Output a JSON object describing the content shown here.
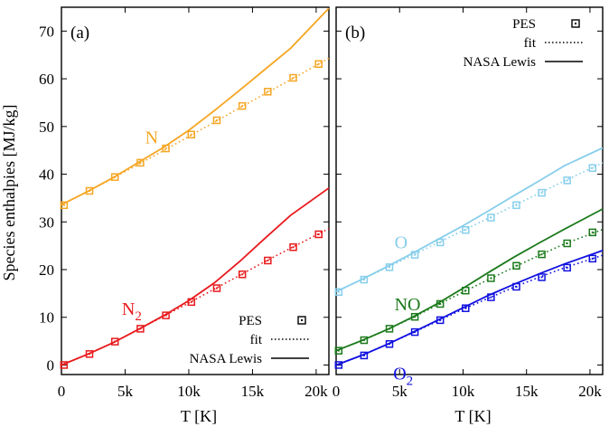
{
  "figure": {
    "ylabel": "Species enthalpies  [MJ/kg]"
  },
  "chart_data": [
    {
      "type": "line",
      "panel_label": "(a)",
      "title": "",
      "xlabel": "T [K]",
      "ylabel": "Species enthalpies  [MJ/kg]",
      "xlim": [
        0,
        21000
      ],
      "ylim": [
        -2,
        75
      ],
      "x_ticks": [
        0,
        5000,
        10000,
        15000,
        20000
      ],
      "x_tick_labels": [
        "0",
        "5k",
        "10k",
        "15k",
        "20k"
      ],
      "y_ticks": [
        0,
        10,
        20,
        30,
        40,
        50,
        60,
        70
      ],
      "y_tick_labels": [
        "0",
        "10",
        "20",
        "30",
        "40",
        "50",
        "60",
        "70"
      ],
      "grid": false,
      "legend": {
        "position": "bottom-right",
        "entries": [
          {
            "label": "PES",
            "style": "square-markers"
          },
          {
            "label": "fit",
            "style": "dotted-line"
          },
          {
            "label": "NASA Lewis",
            "style": "solid-line"
          }
        ]
      },
      "series": [
        {
          "name": "N",
          "color": "#f5a623",
          "pes_x": [
            200,
            2200,
            4200,
            6200,
            8200,
            10200,
            12200,
            14200,
            16200,
            18200,
            20200
          ],
          "pes_y": [
            33.5,
            36.5,
            39.4,
            42.4,
            45.4,
            48.3,
            51.3,
            54.3,
            57.3,
            60.2,
            63.1
          ],
          "fit_x": [
            0,
            2000,
            4000,
            6000,
            8000,
            10000,
            12000,
            14000,
            16000,
            18000,
            21000
          ],
          "fit_y": [
            33.6,
            36.3,
            39.1,
            42.0,
            44.9,
            47.9,
            50.9,
            53.9,
            56.9,
            59.8,
            64.3
          ],
          "nasa_x": [
            0,
            2000,
            4000,
            6000,
            8000,
            10000,
            12000,
            14000,
            16000,
            18000,
            21000
          ],
          "nasa_y": [
            33.6,
            36.3,
            39.2,
            42.4,
            45.6,
            49.2,
            53.3,
            57.6,
            62.0,
            66.4,
            74.8
          ]
        },
        {
          "name": "N2",
          "color": "#e8191c",
          "pes_x": [
            200,
            2200,
            4200,
            6200,
            8200,
            10200,
            12200,
            14200,
            16200,
            18200,
            20200
          ],
          "pes_y": [
            0.0,
            2.3,
            4.9,
            7.6,
            10.4,
            13.2,
            16.1,
            19.0,
            21.9,
            24.7,
            27.4
          ],
          "fit_x": [
            0,
            2000,
            4000,
            6000,
            8000,
            10000,
            12000,
            14000,
            16000,
            18000,
            21000
          ],
          "fit_y": [
            0.0,
            2.2,
            4.6,
            7.4,
            10.2,
            13.0,
            15.9,
            18.8,
            21.7,
            24.5,
            28.6
          ],
          "nasa_x": [
            0,
            2000,
            4000,
            6000,
            8000,
            10000,
            12000,
            14000,
            16000,
            18000,
            21000
          ],
          "nasa_y": [
            0.0,
            2.2,
            4.6,
            7.4,
            10.3,
            13.5,
            17.2,
            21.7,
            26.6,
            31.4,
            37.1
          ]
        }
      ],
      "annotations": [
        {
          "text": "N",
          "series": "N"
        },
        {
          "text": "N",
          "subscript": "2",
          "series": "N2"
        }
      ]
    },
    {
      "type": "line",
      "panel_label": "(b)",
      "title": "",
      "xlabel": "T [K]",
      "xlim": [
        0,
        21000
      ],
      "ylim": [
        -2,
        75
      ],
      "x_ticks": [
        0,
        5000,
        10000,
        15000,
        20000
      ],
      "x_tick_labels": [
        "0",
        "5k",
        "10k",
        "15k",
        "20k"
      ],
      "grid": false,
      "legend": {
        "position": "top-right",
        "entries": [
          {
            "label": "PES",
            "style": "square-markers"
          },
          {
            "label": "fit",
            "style": "dotted-line"
          },
          {
            "label": "NASA Lewis",
            "style": "solid-line"
          }
        ]
      },
      "series": [
        {
          "name": "O",
          "color": "#87ceeb",
          "pes_x": [
            200,
            2200,
            4200,
            6200,
            8200,
            10200,
            12200,
            14200,
            16200,
            18200,
            20200
          ],
          "pes_y": [
            15.3,
            17.9,
            20.5,
            23.1,
            25.7,
            28.3,
            30.9,
            33.5,
            36.1,
            38.7,
            41.3
          ],
          "fit_x": [
            0,
            2000,
            4000,
            6000,
            8000,
            10000,
            12000,
            14000,
            16000,
            18000,
            21000
          ],
          "fit_y": [
            15.4,
            17.9,
            20.4,
            23.0,
            25.6,
            28.2,
            30.8,
            33.4,
            36.0,
            38.6,
            42.4
          ],
          "nasa_x": [
            0,
            2000,
            4000,
            6000,
            8000,
            10000,
            12000,
            14000,
            16000,
            18000,
            21000
          ],
          "nasa_y": [
            15.4,
            17.9,
            20.6,
            23.4,
            26.3,
            29.2,
            32.3,
            35.5,
            38.6,
            41.8,
            45.5
          ]
        },
        {
          "name": "NO",
          "color": "#1b7a1b",
          "pes_x": [
            200,
            2200,
            4200,
            6200,
            8200,
            10200,
            12200,
            14200,
            16200,
            18200,
            20200
          ],
          "pes_y": [
            3.0,
            5.2,
            7.6,
            10.1,
            12.8,
            15.6,
            18.2,
            20.8,
            23.2,
            25.5,
            27.8
          ],
          "fit_x": [
            0,
            2000,
            4000,
            6000,
            8000,
            10000,
            12000,
            14000,
            16000,
            18000,
            21000
          ],
          "fit_y": [
            3.0,
            5.1,
            7.4,
            9.9,
            12.6,
            15.3,
            17.9,
            20.5,
            23.0,
            25.4,
            28.4
          ],
          "nasa_x": [
            0,
            2000,
            4000,
            6000,
            8000,
            10000,
            12000,
            14000,
            16000,
            18000,
            21000
          ],
          "nasa_y": [
            3.0,
            5.1,
            7.4,
            10.0,
            12.9,
            16.1,
            19.4,
            22.6,
            25.6,
            28.5,
            32.7
          ]
        },
        {
          "name": "O2",
          "color": "#1010e0",
          "pes_x": [
            200,
            2200,
            4200,
            6200,
            8200,
            10200,
            12200,
            14200,
            16200,
            18200,
            20200
          ],
          "pes_y": [
            0.0,
            2.0,
            4.4,
            6.9,
            9.4,
            11.9,
            14.2,
            16.4,
            18.4,
            20.4,
            22.3
          ],
          "fit_x": [
            0,
            2000,
            4000,
            6000,
            8000,
            10000,
            12000,
            14000,
            16000,
            18000,
            21000
          ],
          "fit_y": [
            0.0,
            2.0,
            4.3,
            6.7,
            9.2,
            11.7,
            14.0,
            16.3,
            18.4,
            20.4,
            23.0
          ],
          "nasa_x": [
            0,
            2000,
            4000,
            6000,
            8000,
            10000,
            12000,
            14000,
            16000,
            18000,
            21000
          ],
          "nasa_y": [
            0.0,
            2.0,
            4.3,
            6.8,
            9.4,
            12.0,
            14.6,
            16.9,
            19.1,
            21.2,
            24.0
          ]
        }
      ],
      "annotations": [
        {
          "text": "O",
          "series": "O"
        },
        {
          "text": "NO",
          "series": "NO"
        },
        {
          "text": "O",
          "subscript": "2",
          "series": "O2"
        }
      ]
    }
  ]
}
